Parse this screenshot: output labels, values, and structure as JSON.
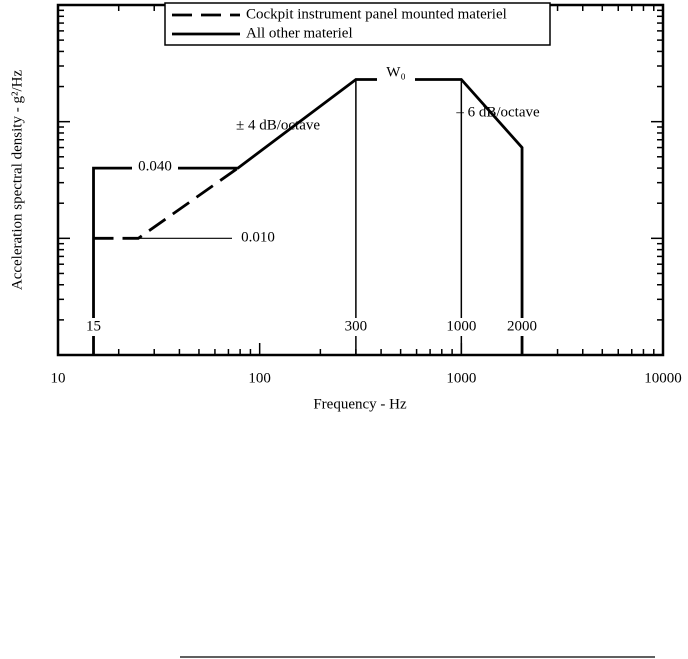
{
  "chart_data": {
    "type": "line",
    "xlabel": "Frequency - Hz",
    "ylabel": "Acceleration spectral density - g²/Hz",
    "xscale": "log",
    "yscale": "log",
    "xlim": [
      10,
      10000
    ],
    "xticks": [
      10,
      100,
      1000,
      10000
    ],
    "ylim": [
      0.001,
      1
    ],
    "yticks": [
      0.001,
      0.01,
      0.1,
      1
    ],
    "ytick_labels": false,
    "minor_ticks": true,
    "legend": "top",
    "series": [
      {
        "name": "Cockpit instrument panel mounted materiel",
        "color": "#000000",
        "dash": true,
        "x": [
          15,
          25,
          78
        ],
        "values": [
          0.01,
          0.01,
          0.04
        ]
      },
      {
        "name": "All other materiel",
        "color": "#000000",
        "dash": false,
        "x": [
          15,
          15,
          78,
          300,
          1000,
          2000,
          2000
        ],
        "values": [
          0.001,
          0.04,
          0.04,
          0.23,
          0.23,
          0.06,
          0.001
        ]
      }
    ],
    "x_markers": [
      15,
      300,
      1000,
      2000
    ],
    "annotations": [
      "0.040",
      "0.010",
      "± 4 dB/octave",
      "W₀",
      "– 6 dB/octave"
    ]
  }
}
